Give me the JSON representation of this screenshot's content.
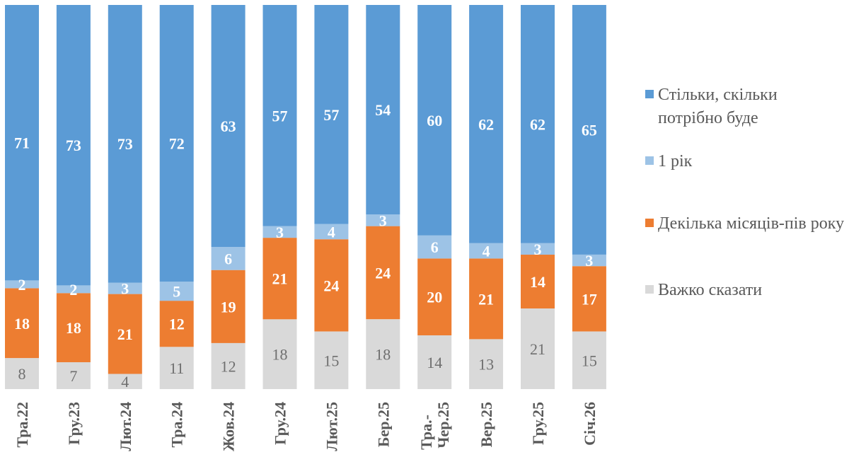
{
  "chart_data": {
    "type": "bar",
    "stacked": true,
    "normalized": true,
    "title": "",
    "xlabel": "",
    "ylabel": "",
    "ylim": [
      0,
      100
    ],
    "grid": false,
    "legend_position": "right",
    "categories": [
      "Тра.22",
      "Гру.23",
      "Лют.24",
      "Тра.24",
      "Жов.24",
      "Гру.24",
      "Лют.25",
      "Бер.25",
      "Тра.-Чер.25",
      "Вер.25",
      "Гру.25",
      "Січ.26"
    ],
    "category_lines": [
      [
        "Тра.22"
      ],
      [
        "Гру.23"
      ],
      [
        "Лют.24"
      ],
      [
        "Тра.24"
      ],
      [
        "Жов.24"
      ],
      [
        "Гру.24"
      ],
      [
        "Лют.25"
      ],
      [
        "Бер.25"
      ],
      [
        "Тра.-",
        "Чер.25"
      ],
      [
        "Вер.25"
      ],
      [
        "Гру.25"
      ],
      [
        "Січ.26"
      ]
    ],
    "series": [
      {
        "name": "Важко сказати",
        "color": "#d9d9d9",
        "label_color": "#6f6f6f",
        "label_bold": false,
        "values": [
          8,
          7,
          4,
          11,
          12,
          18,
          15,
          18,
          14,
          13,
          21,
          15
        ]
      },
      {
        "name": "Декілька місяців-пів року",
        "color": "#ed7d31",
        "label_color": "#ffffff",
        "label_bold": true,
        "values": [
          18,
          18,
          21,
          12,
          19,
          21,
          24,
          24,
          20,
          21,
          14,
          17
        ]
      },
      {
        "name": "1 рік",
        "color": "#9dc3e6",
        "label_color": "#ffffff",
        "label_bold": true,
        "values": [
          2,
          2,
          3,
          5,
          6,
          3,
          4,
          3,
          6,
          4,
          3,
          3
        ]
      },
      {
        "name": "Стільки, скільки потрібно буде",
        "color": "#5b9bd5",
        "label_color": "#ffffff",
        "label_bold": true,
        "values": [
          71,
          73,
          73,
          72,
          63,
          57,
          57,
          54,
          60,
          62,
          62,
          65
        ]
      }
    ],
    "legend": [
      {
        "label": "Стільки, скільки потрібно буде",
        "color": "#5b9bd5"
      },
      {
        "label": "1 рік",
        "color": "#9dc3e6"
      },
      {
        "label": "Декілька місяців-пів року",
        "color": "#ed7d31"
      },
      {
        "label": "Важко сказати",
        "color": "#d9d9d9"
      }
    ]
  }
}
